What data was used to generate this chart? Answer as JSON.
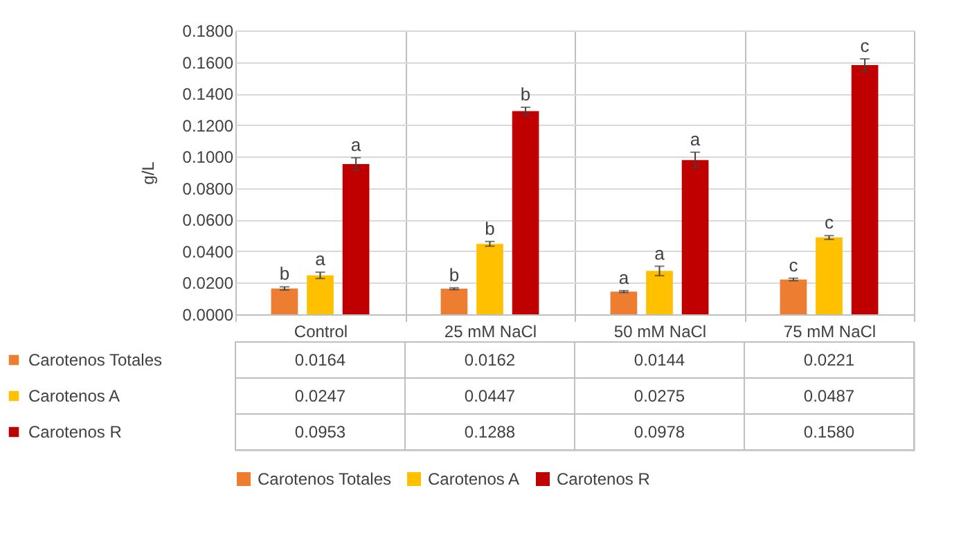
{
  "chart_data": {
    "type": "bar",
    "ylabel": "g/L",
    "categories": [
      "Control",
      "25 mM NaCl",
      "50 mM NaCl",
      "75 mM NaCl"
    ],
    "series": [
      {
        "name": "Carotenos Totales",
        "color": "#ed7d31",
        "values": [
          0.0164,
          0.0162,
          0.0144,
          0.0221
        ],
        "errors": [
          0.001,
          0.0006,
          0.0006,
          0.0008
        ],
        "value_labels": [
          "0.0164",
          "0.0162",
          "0.0144",
          "0.0221"
        ]
      },
      {
        "name": "Carotenos A",
        "color": "#ffc000",
        "values": [
          0.0247,
          0.0447,
          0.0275,
          0.0487
        ],
        "errors": [
          0.002,
          0.0015,
          0.003,
          0.0012
        ],
        "value_labels": [
          "0.0247",
          "0.0447",
          "0.0275",
          "0.0487"
        ]
      },
      {
        "name": "Carotenos R",
        "color": "#c00000",
        "values": [
          0.0953,
          0.1288,
          0.0978,
          0.158
        ],
        "errors": [
          0.004,
          0.0025,
          0.005,
          0.004
        ],
        "value_labels": [
          "0.0953",
          "0.1288",
          "0.0978",
          "0.1580"
        ]
      }
    ],
    "annotations": [
      "b",
      "a",
      "a",
      "b",
      "b",
      "b",
      "a",
      "a",
      "a",
      "c",
      "c",
      "c"
    ],
    "ylim": [
      0,
      0.18
    ],
    "yticks": [
      {
        "value": 0,
        "label": "0.0000"
      },
      {
        "value": 0.02,
        "label": "0.0200"
      },
      {
        "value": 0.04,
        "label": "0.0400"
      },
      {
        "value": 0.06,
        "label": "0.0600"
      },
      {
        "value": 0.08,
        "label": "0.0800"
      },
      {
        "value": 0.1,
        "label": "0.1000"
      },
      {
        "value": 0.12,
        "label": "0.1200"
      },
      {
        "value": 0.14,
        "label": "0.1400"
      },
      {
        "value": 0.16,
        "label": "0.1600"
      },
      {
        "value": 0.18,
        "label": "0.1800"
      }
    ],
    "grid": "y",
    "legend": "bottom"
  }
}
